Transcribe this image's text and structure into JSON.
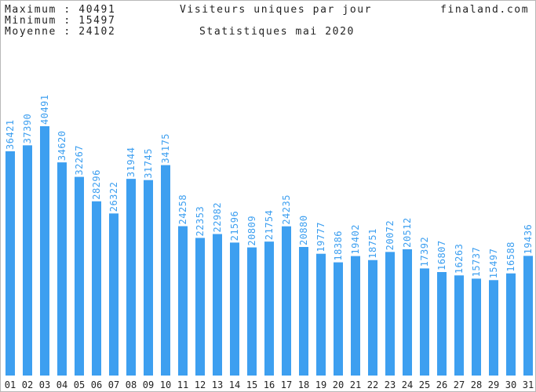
{
  "header": {
    "max_label": "Maximum : 40491",
    "min_label": "Minimum : 15497",
    "avg_label": "Moyenne : 24102",
    "title": "Visiteurs uniques par jour",
    "subtitle": "Statistiques mai 2020",
    "site": "finaland.com"
  },
  "colors": {
    "bar": "#3d9ff0",
    "value_label": "#3d9ff0",
    "axis_label": "#222222"
  },
  "chart_data": {
    "type": "bar",
    "title": "Visiteurs uniques par jour",
    "subtitle": "Statistiques mai 2020",
    "categories": [
      "01",
      "02",
      "03",
      "04",
      "05",
      "06",
      "07",
      "08",
      "09",
      "10",
      "11",
      "12",
      "13",
      "14",
      "15",
      "16",
      "17",
      "18",
      "19",
      "20",
      "21",
      "22",
      "23",
      "24",
      "25",
      "26",
      "27",
      "28",
      "29",
      "30",
      "31"
    ],
    "values": [
      36421,
      37390,
      40491,
      34620,
      32267,
      28296,
      26322,
      31944,
      31745,
      34175,
      24258,
      22353,
      22982,
      21596,
      20809,
      21754,
      24235,
      20880,
      19777,
      18386,
      19402,
      18751,
      20072,
      20512,
      17392,
      16807,
      16263,
      15737,
      15497,
      16588,
      19436
    ],
    "ylim": [
      0,
      42000
    ],
    "grid": false,
    "legend": "none"
  }
}
